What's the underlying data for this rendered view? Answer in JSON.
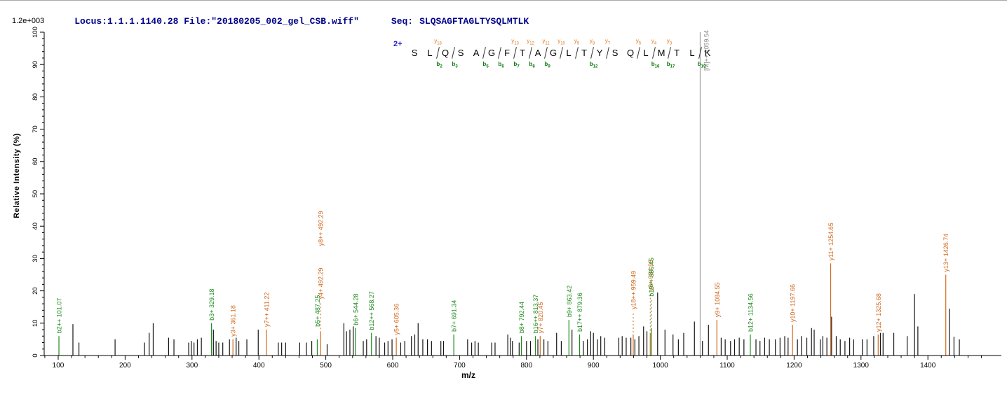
{
  "header": {
    "locus": "Locus:1.1.1.1140.28 File:\"20180205_002_gel_CSB.wiff\"",
    "seq_label": "Seq:",
    "sequence": "SLQSAGFTAGLTYSQLMTLK",
    "text_color": "#00008b"
  },
  "scale_note": "1.2e+003",
  "axis": {
    "x_title": "m/z",
    "y_title": "Relative  Intensity  (%)"
  },
  "colors": {
    "b_ion": "#1e8a1e",
    "y_ion": "#d2691e",
    "precursor": "#8f8f8f",
    "peak": "#141414",
    "axis": "#000000",
    "charge": "#2222cc",
    "header": "#00008b"
  },
  "peptide_annotation": {
    "charge_label": "2+",
    "residues": [
      "S",
      "L",
      "Q",
      "S",
      "A",
      "G",
      "F",
      "T",
      "A",
      "G",
      "L",
      "T",
      "Y",
      "S",
      "Q",
      "L",
      "M",
      "T",
      "L",
      "K"
    ],
    "cleavages": [
      {
        "after": 2,
        "y_ion": "y18",
        "b_ion": "b2"
      },
      {
        "after": 3,
        "b_ion": "b3"
      },
      {
        "after": 5,
        "b_ion": "b5"
      },
      {
        "after": 6,
        "b_ion": "b6"
      },
      {
        "after": 7,
        "y_ion": "y13",
        "b_ion": "b7"
      },
      {
        "after": 8,
        "y_ion": "y12",
        "b_ion": "b8"
      },
      {
        "after": 9,
        "y_ion": "y11",
        "b_ion": "b9"
      },
      {
        "after": 10,
        "y_ion": "y10"
      },
      {
        "after": 11,
        "y_ion": "y9"
      },
      {
        "after": 12,
        "y_ion": "y8",
        "b_ion": "b12"
      },
      {
        "after": 13,
        "y_ion": "y7"
      },
      {
        "after": 15,
        "y_ion": "y5"
      },
      {
        "after": 16,
        "y_ion": "y4",
        "b_ion": "b16"
      },
      {
        "after": 17,
        "y_ion": "y3",
        "b_ion": "b17"
      },
      {
        "after": 19,
        "b_ion": "b19"
      }
    ]
  },
  "chart_data": {
    "type": "bar",
    "title": "",
    "xlabel": "m/z",
    "ylabel": "Relative Intensity (%)",
    "intensity_full_scale": "1.2e+003",
    "xlim": [
      79,
      1510
    ],
    "ylim": [
      0,
      100
    ],
    "x_major_ticks": [
      100,
      200,
      300,
      400,
      500,
      600,
      700,
      800,
      900,
      1000,
      1100,
      1200,
      1300,
      1400
    ],
    "x_minor_step": 20,
    "y_major_ticks": [
      0,
      10,
      20,
      30,
      40,
      50,
      60,
      70,
      80,
      90,
      100
    ],
    "y_minor_step": 2,
    "legend": "none",
    "precursor": {
      "label": "[M]++ 1059.54",
      "mz": 1059.54,
      "intensity_pct": 100
    },
    "labeled_peaks": [
      {
        "series": "b",
        "label": "b2++ 101.07",
        "mz": 101.07,
        "intensity_pct": 6
      },
      {
        "series": "b",
        "label": "b3+ 329.18",
        "mz": 329.18,
        "intensity_pct": 10
      },
      {
        "series": "y",
        "label": "y3+ 361.18",
        "mz": 361.18,
        "intensity_pct": 5
      },
      {
        "series": "y",
        "label": "y7++ 411.22",
        "mz": 411.22,
        "intensity_pct": 8
      },
      {
        "series": "b",
        "label": "b5+ 487.25",
        "mz": 487.25,
        "intensity_pct": 5,
        "label_gap": 18
      },
      {
        "series": "y",
        "label": "y4+ 492.29",
        "mz": 492.29,
        "intensity_pct": 7.5,
        "label_gap": 46,
        "dashed_leader": true,
        "extra_labels": [
          {
            "text": "y8++ 492.29",
            "gap": 122
          }
        ]
      },
      {
        "series": "b",
        "label": "b6+ 544.28",
        "mz": 544.28,
        "intensity_pct": 8.5
      },
      {
        "series": "b",
        "label": "b12++ 568.27",
        "mz": 568.27,
        "intensity_pct": 7
      },
      {
        "series": "y",
        "label": "y5+ 605.36",
        "mz": 605.36,
        "intensity_pct": 5.5
      },
      {
        "series": "b",
        "label": "b7+ 691.34",
        "mz": 691.34,
        "intensity_pct": 6.5
      },
      {
        "series": "b",
        "label": "b8+ 792.44",
        "mz": 792.44,
        "intensity_pct": 6
      },
      {
        "series": "b",
        "label": "b16++ 813.37",
        "mz": 813.37,
        "intensity_pct": 6
      },
      {
        "series": "y",
        "label": "y7+ 820.45",
        "mz": 820.45,
        "intensity_pct": 6
      },
      {
        "series": "b",
        "label": "b9+ 863.42",
        "mz": 863.42,
        "intensity_pct": 11
      },
      {
        "series": "b",
        "label": "b17++ 879.36",
        "mz": 879.36,
        "intensity_pct": 6.5
      },
      {
        "series": "y",
        "label": "y18++ 959.49",
        "mz": 959.49,
        "intensity_pct": 6.5,
        "label_gap": 36,
        "dashed_leader": true
      },
      {
        "series": "y",
        "label": "y8+ 984.98",
        "mz": 984.98,
        "intensity_pct": 7,
        "label_gap": 60,
        "dashed_leader": true
      },
      {
        "series": "b",
        "label": "b19++ 986.45",
        "mz": 986.45,
        "intensity_pct": 8.5,
        "label_gap": 45,
        "dashed_leader": true
      },
      {
        "series": "y",
        "label": "y9+ 1084.55",
        "mz": 1084.55,
        "intensity_pct": 11
      },
      {
        "series": "b",
        "label": "b12+ 1134.56",
        "mz": 1134.56,
        "intensity_pct": 6.5
      },
      {
        "series": "y",
        "label": "y10+ 1197.66",
        "mz": 1197.66,
        "intensity_pct": 9.5
      },
      {
        "series": "y",
        "label": "y11+ 1254.65",
        "mz": 1254.65,
        "intensity_pct": 28.5
      },
      {
        "series": "y",
        "label": "y12+ 1325.68",
        "mz": 1325.68,
        "intensity_pct": 6.5
      },
      {
        "series": "y",
        "label": "y13+ 1426.74",
        "mz": 1426.74,
        "intensity_pct": 25
      }
    ],
    "unlabeled_peaks": [
      [
        122,
        9.7
      ],
      [
        131,
        4
      ],
      [
        185,
        5
      ],
      [
        229,
        4
      ],
      [
        236,
        7
      ],
      [
        242,
        10
      ],
      [
        265,
        5.5
      ],
      [
        273,
        5
      ],
      [
        295,
        4
      ],
      [
        299,
        4.5
      ],
      [
        303,
        4
      ],
      [
        308,
        5
      ],
      [
        314,
        5.5
      ],
      [
        332,
        8
      ],
      [
        336,
        4.5
      ],
      [
        340,
        4
      ],
      [
        346,
        4
      ],
      [
        356,
        5
      ],
      [
        366,
        5.5
      ],
      [
        370,
        4.5
      ],
      [
        382,
        5
      ],
      [
        399,
        8
      ],
      [
        429,
        4
      ],
      [
        434,
        4
      ],
      [
        440,
        4
      ],
      [
        461,
        4
      ],
      [
        471,
        4
      ],
      [
        479,
        4.5
      ],
      [
        502,
        3.5
      ],
      [
        527,
        10
      ],
      [
        531,
        7.5
      ],
      [
        536,
        8
      ],
      [
        541,
        9
      ],
      [
        556,
        4.5
      ],
      [
        561,
        5
      ],
      [
        575,
        6
      ],
      [
        580,
        5.5
      ],
      [
        588,
        4
      ],
      [
        593,
        4.5
      ],
      [
        599,
        5
      ],
      [
        612,
        4
      ],
      [
        618,
        4.5
      ],
      [
        628,
        6
      ],
      [
        633,
        6.5
      ],
      [
        638,
        10
      ],
      [
        645,
        5
      ],
      [
        652,
        5
      ],
      [
        658,
        4.5
      ],
      [
        672,
        4.5
      ],
      [
        676,
        4.5
      ],
      [
        712,
        5
      ],
      [
        718,
        4
      ],
      [
        723,
        4.5
      ],
      [
        728,
        4
      ],
      [
        748,
        4
      ],
      [
        753,
        4
      ],
      [
        772,
        6.5
      ],
      [
        776,
        5.5
      ],
      [
        779,
        4.5
      ],
      [
        789,
        4
      ],
      [
        800,
        4.5
      ],
      [
        806,
        4.5
      ],
      [
        817,
        5
      ],
      [
        826,
        5
      ],
      [
        832,
        4.5
      ],
      [
        845,
        7
      ],
      [
        852,
        4.5
      ],
      [
        868,
        8
      ],
      [
        885,
        4.5
      ],
      [
        891,
        5
      ],
      [
        896,
        7.5
      ],
      [
        900,
        7
      ],
      [
        906,
        5
      ],
      [
        911,
        6
      ],
      [
        917,
        5.5
      ],
      [
        938,
        5.5
      ],
      [
        943,
        6
      ],
      [
        949,
        5.5
      ],
      [
        956,
        5.5
      ],
      [
        962,
        5
      ],
      [
        968,
        6
      ],
      [
        975,
        9
      ],
      [
        980,
        7.5
      ],
      [
        996,
        19.5
      ],
      [
        1007,
        8
      ],
      [
        1019,
        6.5
      ],
      [
        1027,
        5
      ],
      [
        1035,
        7
      ],
      [
        1051,
        10.5
      ],
      [
        1063,
        4.5
      ],
      [
        1072,
        9.5
      ],
      [
        1091,
        5.5
      ],
      [
        1097,
        5
      ],
      [
        1105,
        4.5
      ],
      [
        1111,
        5
      ],
      [
        1118,
        5.5
      ],
      [
        1125,
        5
      ],
      [
        1143,
        5
      ],
      [
        1149,
        4.5
      ],
      [
        1156,
        5.5
      ],
      [
        1163,
        5
      ],
      [
        1172,
        5
      ],
      [
        1179,
        5.5
      ],
      [
        1186,
        6
      ],
      [
        1191,
        5.5
      ],
      [
        1205,
        5
      ],
      [
        1211,
        6
      ],
      [
        1219,
        5.5
      ],
      [
        1226,
        8.5
      ],
      [
        1230,
        8
      ],
      [
        1239,
        5
      ],
      [
        1243,
        6
      ],
      [
        1249,
        5.5
      ],
      [
        1256,
        12
      ],
      [
        1263,
        6
      ],
      [
        1269,
        5
      ],
      [
        1276,
        4.5
      ],
      [
        1283,
        5.5
      ],
      [
        1289,
        5
      ],
      [
        1302,
        5
      ],
      [
        1309,
        5
      ],
      [
        1319,
        6
      ],
      [
        1329,
        7
      ],
      [
        1333,
        7
      ],
      [
        1349,
        7
      ],
      [
        1369,
        6
      ],
      [
        1380,
        19
      ],
      [
        1385,
        9
      ],
      [
        1432,
        14.5
      ],
      [
        1439,
        5.8
      ],
      [
        1447,
        5
      ]
    ]
  }
}
